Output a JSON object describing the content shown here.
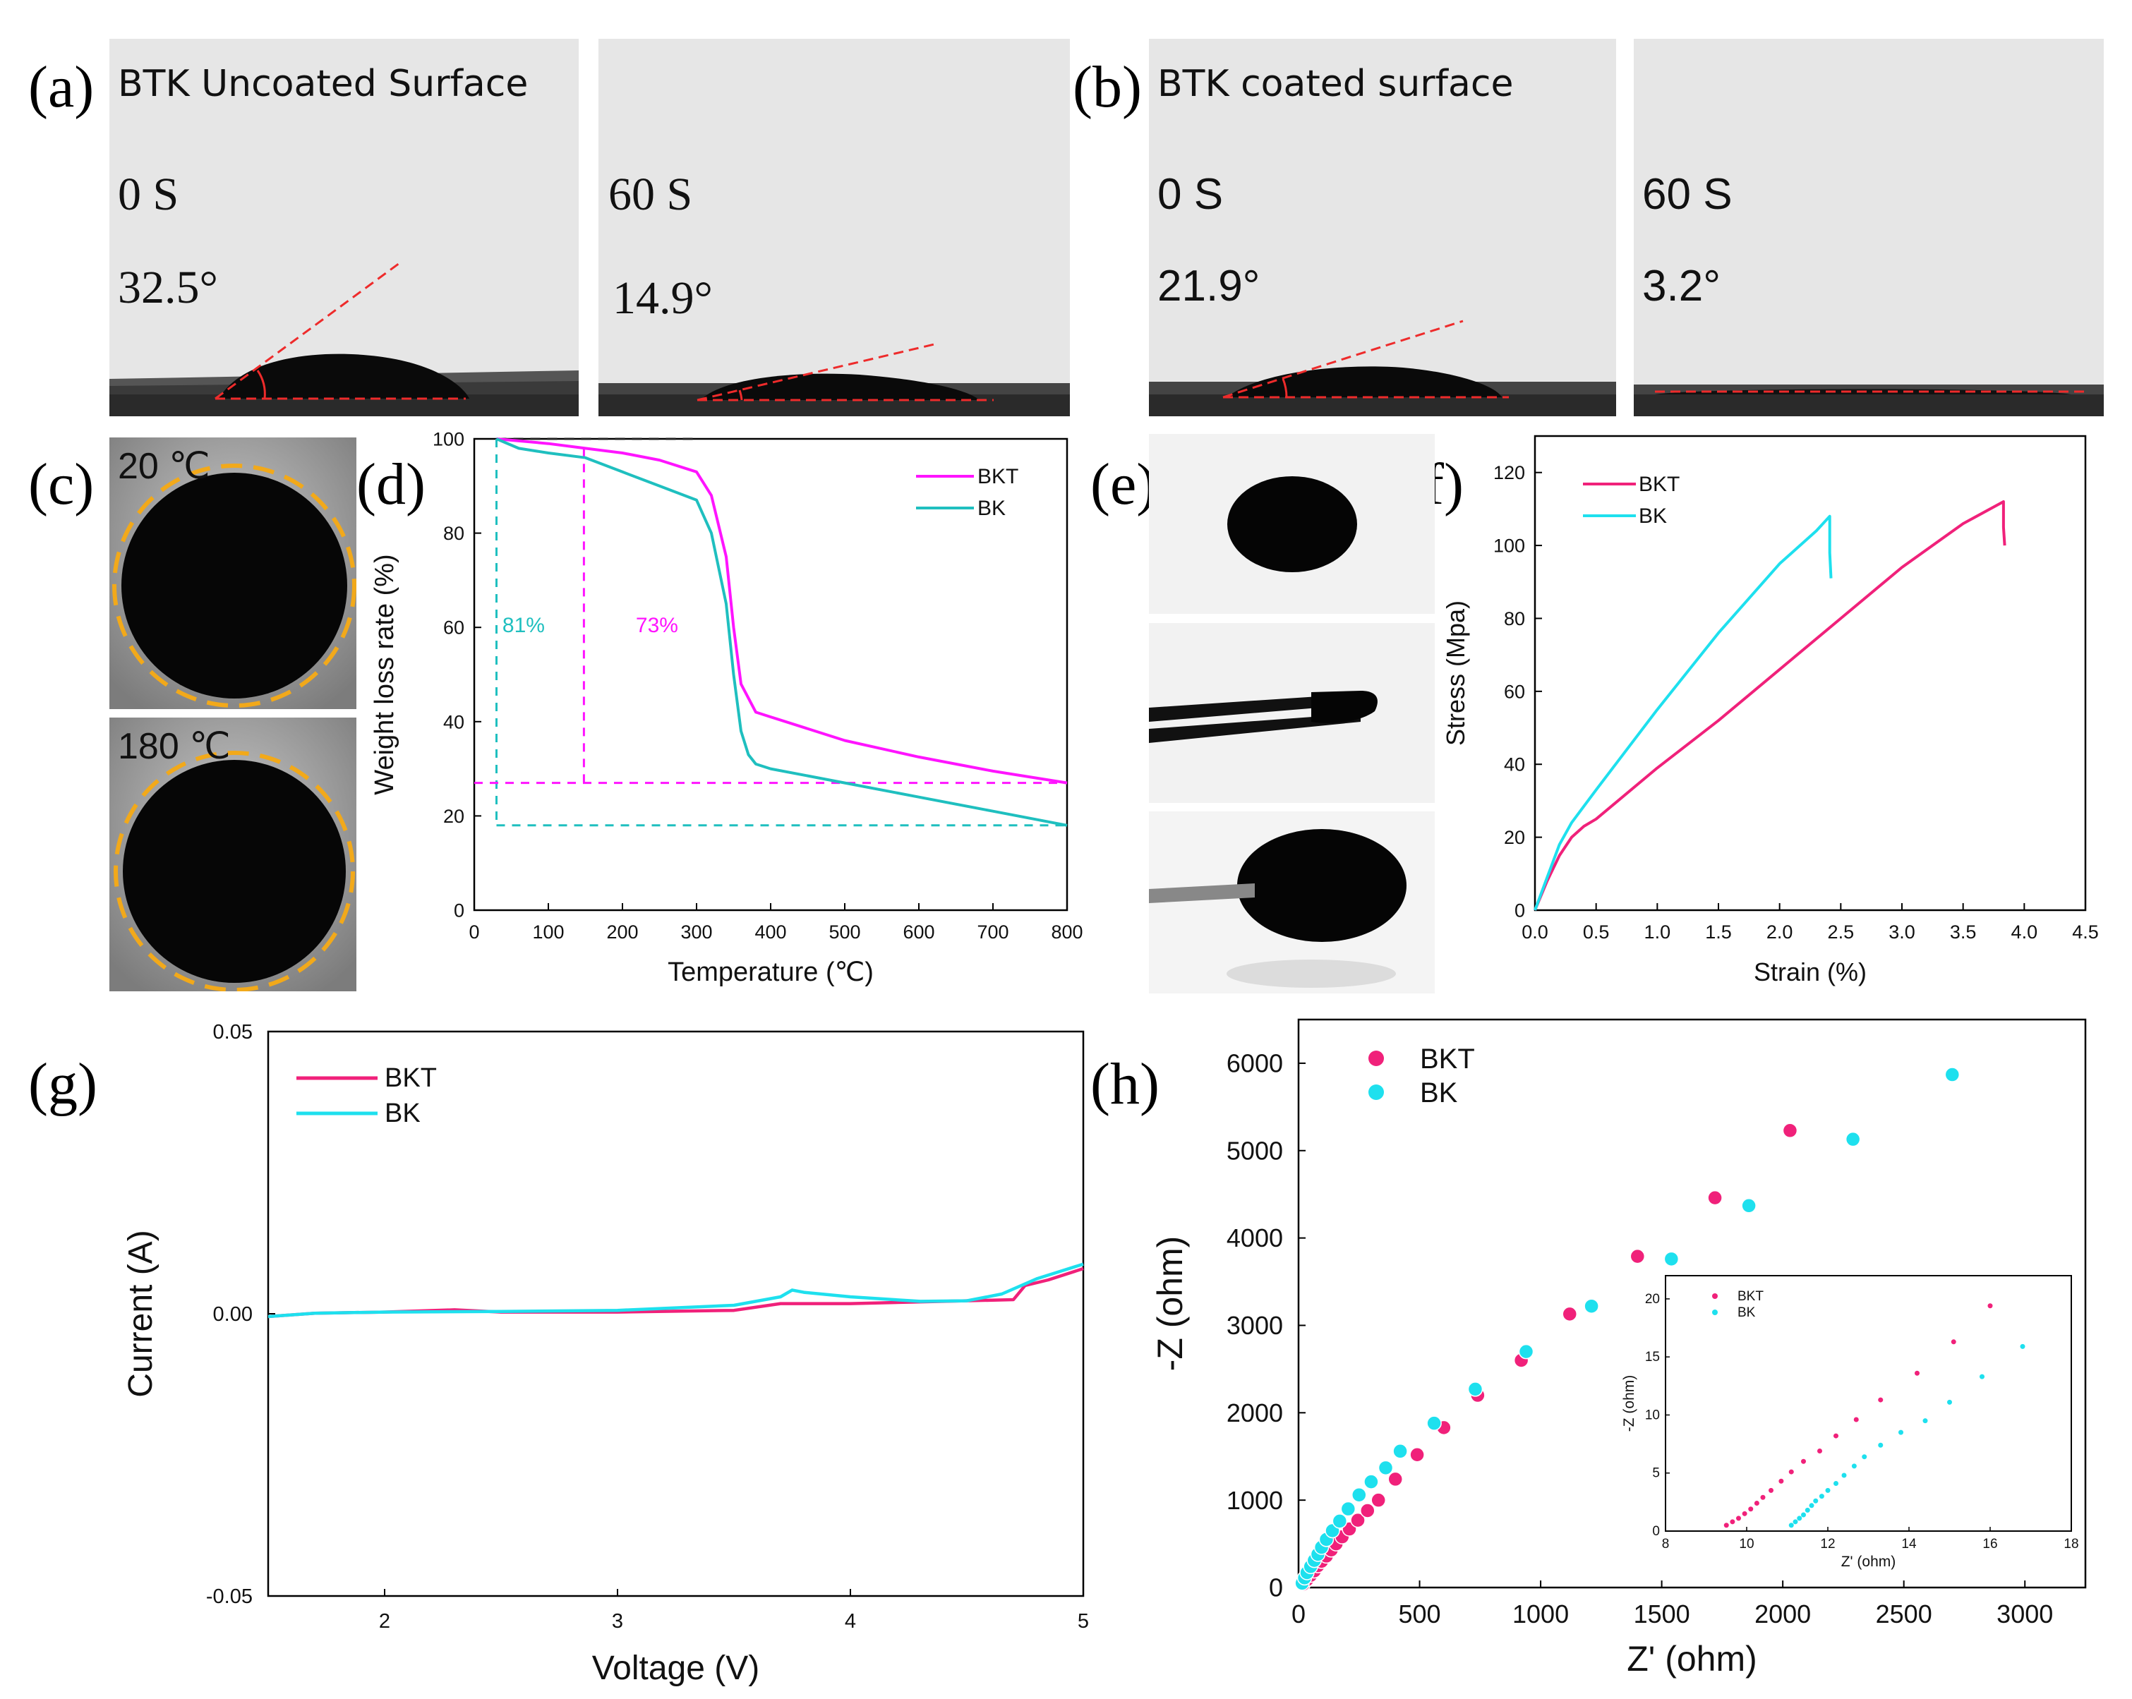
{
  "panel_labels": {
    "a": "(a)",
    "b": "(b)",
    "c": "(c)",
    "d": "(d)",
    "e": "(e)",
    "f": "(f)",
    "g": "(g)",
    "h": "(h)"
  },
  "panel_a": {
    "caption": "BTK Uncoated Surface",
    "left": {
      "time": "0 S",
      "angle": "32.5°"
    },
    "right": {
      "time": "60 S",
      "angle": "14.9°"
    }
  },
  "panel_b": {
    "caption": "BTK coated surface",
    "left": {
      "time": "0 S",
      "angle": "21.9°"
    },
    "right": {
      "time": "60 S",
      "angle": "3.2°"
    }
  },
  "panel_c": {
    "top_temp": "20 ℃",
    "bottom_temp": "180 ℃"
  },
  "colors": {
    "bkt_d": "#ff14ff",
    "bk_d": "#1fbfbf",
    "bkt": "#f0217a",
    "bk": "#1ee0ee",
    "ring": "#f2a91a",
    "tangent": "#ee2b2b"
  },
  "chart_data": [
    {
      "id": "d",
      "type": "line",
      "title": "",
      "xlabel": "Temperature (℃)",
      "ylabel": "Weight loss rate (%)",
      "xlim": [
        0,
        800
      ],
      "ylim": [
        0,
        100
      ],
      "xticks": [
        0,
        100,
        200,
        300,
        400,
        500,
        600,
        700,
        800
      ],
      "yticks": [
        0,
        20,
        40,
        60,
        80,
        100
      ],
      "legend": [
        "BKT",
        "BK"
      ],
      "annotations": [
        {
          "text": "81%",
          "series": "BK"
        },
        {
          "text": "73%",
          "series": "BKT"
        }
      ],
      "series": [
        {
          "name": "BKT",
          "x": [
            30,
            100,
            150,
            200,
            250,
            300,
            320,
            340,
            350,
            360,
            380,
            400,
            500,
            600,
            700,
            800
          ],
          "y": [
            100,
            99,
            98,
            97,
            95.5,
            93,
            88,
            75,
            60,
            48,
            42,
            41,
            36,
            32.5,
            29.5,
            27
          ]
        },
        {
          "name": "BK",
          "x": [
            30,
            60,
            100,
            150,
            200,
            250,
            300,
            320,
            340,
            350,
            360,
            370,
            380,
            400,
            500,
            600,
            700,
            800
          ],
          "y": [
            100,
            98,
            97,
            96,
            93,
            90,
            87,
            80,
            65,
            50,
            38,
            33,
            31,
            30,
            27,
            24,
            21,
            18
          ]
        }
      ]
    },
    {
      "id": "f",
      "type": "line",
      "title": "",
      "xlabel": "Strain (%)",
      "ylabel": "Stress (Mpa)",
      "xlim": [
        0,
        4.5
      ],
      "ylim": [
        0,
        130
      ],
      "xticks": [
        0.0,
        0.5,
        1.0,
        1.5,
        2.0,
        2.5,
        3.0,
        3.5,
        4.0,
        4.5
      ],
      "yticks": [
        0,
        20,
        40,
        60,
        80,
        100,
        120
      ],
      "legend": [
        "BKT",
        "BK"
      ],
      "series": [
        {
          "name": "BKT",
          "x": [
            0,
            0.1,
            0.2,
            0.3,
            0.4,
            0.5,
            1.0,
            1.5,
            2.0,
            2.5,
            3.0,
            3.5,
            3.83,
            3.83,
            3.84
          ],
          "y": [
            0,
            8,
            15,
            20,
            23,
            25,
            39,
            52,
            66,
            80,
            94,
            106,
            112,
            105,
            100
          ]
        },
        {
          "name": "BK",
          "x": [
            0,
            0.1,
            0.2,
            0.3,
            0.5,
            1.0,
            1.5,
            2.0,
            2.3,
            2.41,
            2.41,
            2.42
          ],
          "y": [
            0,
            9,
            18,
            24,
            33,
            55,
            76,
            95,
            104,
            108,
            98,
            91
          ]
        }
      ]
    },
    {
      "id": "g",
      "type": "line",
      "title": "",
      "xlabel": "Voltage (V)",
      "ylabel": "Current (A)",
      "xlim": [
        1.5,
        5
      ],
      "ylim": [
        -0.05,
        0.05
      ],
      "xticks": [
        2,
        3,
        4,
        5
      ],
      "yticks": [
        -0.05,
        0.0,
        0.05
      ],
      "ytick_labels": [
        "-0.05",
        "0.00",
        "0.05"
      ],
      "legend": [
        "BKT",
        "BK"
      ],
      "series": [
        {
          "name": "BKT",
          "x": [
            1.5,
            1.7,
            2.0,
            2.3,
            2.5,
            3.0,
            3.5,
            3.7,
            4.0,
            4.4,
            4.7,
            4.75,
            4.85,
            5.0
          ],
          "y": [
            -0.0005,
            0.0001,
            0.0003,
            0.0007,
            0.0003,
            0.0003,
            0.0006,
            0.0018,
            0.0018,
            0.0022,
            0.0025,
            0.005,
            0.006,
            0.008
          ]
        },
        {
          "name": "BK",
          "x": [
            1.5,
            1.7,
            2.0,
            2.5,
            3.0,
            3.5,
            3.7,
            3.75,
            3.8,
            4.0,
            4.3,
            4.5,
            4.65,
            4.8,
            4.9,
            5.0
          ],
          "y": [
            -0.0005,
            0.0001,
            0.0003,
            0.0004,
            0.0006,
            0.0015,
            0.003,
            0.0042,
            0.0038,
            0.003,
            0.0022,
            0.0023,
            0.0035,
            0.0062,
            0.0075,
            0.0088
          ]
        }
      ]
    },
    {
      "id": "h",
      "type": "scatter",
      "title": "",
      "xlabel": "Z' (ohm)",
      "ylabel": "-Z (ohm)",
      "xlim": [
        0,
        3250
      ],
      "ylim": [
        0,
        6500
      ],
      "xticks": [
        0,
        500,
        1000,
        1500,
        2000,
        2500,
        3000
      ],
      "yticks": [
        0,
        1000,
        2000,
        3000,
        4000,
        5000,
        6000
      ],
      "legend": [
        "BKT",
        "BK"
      ],
      "series": [
        {
          "name": "BKT",
          "x": [
            20,
            35,
            50,
            65,
            80,
            95,
            115,
            135,
            155,
            180,
            210,
            245,
            285,
            330,
            400,
            490,
            600,
            740,
            920,
            1120,
            1400,
            1720,
            2030
          ],
          "y": [
            40,
            90,
            140,
            190,
            250,
            300,
            360,
            430,
            500,
            580,
            670,
            770,
            880,
            1000,
            1240,
            1520,
            1830,
            2200,
            2600,
            3130,
            3790,
            4460,
            5230
          ]
        },
        {
          "name": "BK",
          "x": [
            15,
            25,
            35,
            50,
            65,
            80,
            95,
            115,
            140,
            170,
            205,
            250,
            300,
            360,
            420,
            560,
            730,
            940,
            1210,
            1540,
            1860,
            2290,
            2700
          ],
          "y": [
            50,
            110,
            170,
            240,
            310,
            380,
            460,
            550,
            650,
            760,
            900,
            1060,
            1210,
            1370,
            1560,
            1880,
            2270,
            2700,
            3220,
            3760,
            4370,
            5130,
            5870
          ]
        }
      ],
      "inset": {
        "xlabel": "Z' (ohm)",
        "ylabel": "-Z (ohm)",
        "xlim": [
          8,
          18
        ],
        "ylim": [
          0,
          22
        ],
        "xticks": [
          8,
          10,
          12,
          14,
          16,
          18
        ],
        "yticks": [
          0,
          5,
          10,
          15,
          20
        ],
        "legend": [
          "BKT",
          "BK"
        ],
        "series": [
          {
            "name": "BKT",
            "x": [
              9.5,
              9.65,
              9.8,
              9.95,
              10.1,
              10.25,
              10.4,
              10.6,
              10.85,
              11.1,
              11.4,
              11.8,
              12.2,
              12.7,
              13.3,
              14.2,
              15.1,
              16.0
            ],
            "y": [
              0.5,
              0.8,
              1.1,
              1.5,
              1.9,
              2.4,
              2.9,
              3.5,
              4.3,
              5.1,
              6.0,
              6.9,
              8.2,
              9.6,
              11.3,
              13.6,
              16.3,
              19.4
            ]
          },
          {
            "name": "BK",
            "x": [
              11.1,
              11.2,
              11.3,
              11.4,
              11.5,
              11.6,
              11.7,
              11.85,
              12.0,
              12.2,
              12.4,
              12.65,
              12.9,
              13.3,
              13.8,
              14.4,
              15.0,
              15.8,
              16.8
            ],
            "y": [
              0.5,
              0.8,
              1.1,
              1.4,
              1.8,
              2.2,
              2.6,
              3.0,
              3.5,
              4.1,
              4.8,
              5.6,
              6.4,
              7.4,
              8.5,
              9.5,
              11.1,
              13.3,
              15.9
            ]
          }
        ]
      }
    }
  ]
}
